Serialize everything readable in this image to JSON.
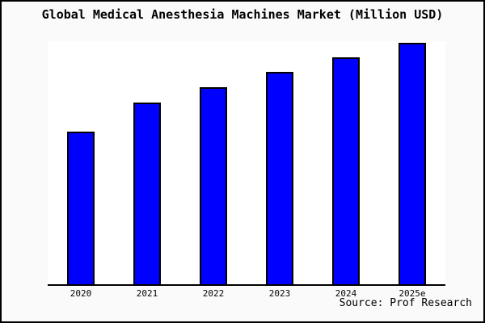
{
  "chart_data": {
    "type": "bar",
    "title": "Global Medical Anesthesia Machines Market (Million USD)",
    "categories": [
      "2020",
      "2021",
      "2022",
      "2023",
      "2024",
      "2025e"
    ],
    "values": [
      62.7,
      74.9,
      81.2,
      87.5,
      93.4,
      99.3
    ],
    "xlabel": "",
    "ylabel": "",
    "ylim": [
      0,
      100
    ],
    "grid": false,
    "legend": null,
    "source": "Source: Prof Research"
  },
  "colors": {
    "bar_fill": "#0000ff",
    "bar_border": "#000000",
    "background": "#fafafa",
    "plot_background": "#ffffff",
    "axis": "#000000",
    "text": "#000000"
  }
}
